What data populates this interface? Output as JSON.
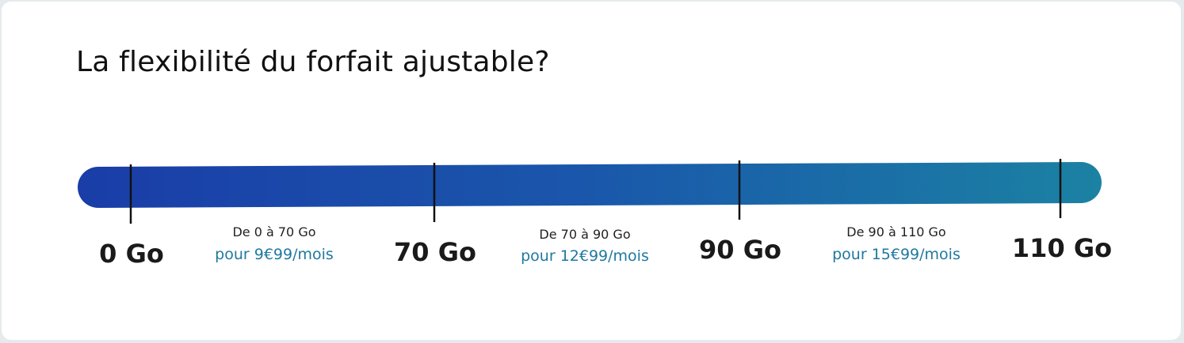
{
  "title": "La flexibilité du forfait ajustable?",
  "ticks": [
    "0 Go",
    "70 Go",
    "90 Go",
    "110 Go"
  ],
  "segments": [
    {
      "range": "De 0 à 70 Go",
      "price": "pour 9€99/mois"
    },
    {
      "range": "De 70 à 90 Go",
      "price": "pour 12€99/mois"
    },
    {
      "range": "De 90 à 110 Go",
      "price": "pour 15€99/mois"
    }
  ]
}
